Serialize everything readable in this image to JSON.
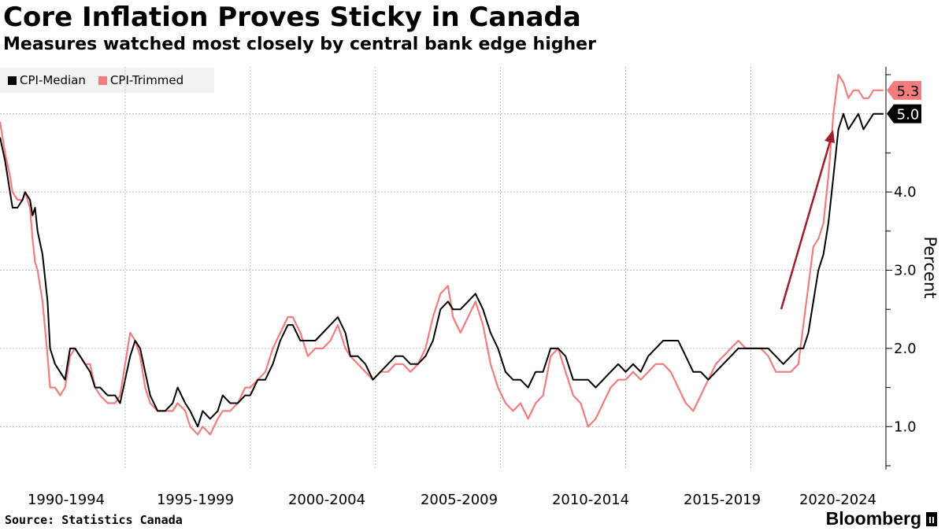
{
  "chart_data": {
    "type": "line",
    "title": "Core Inflation Proves Sticky in Canada",
    "subtitle": "Measures watched most closely by central bank edge higher",
    "ylabel": "Percent",
    "xlabel": "",
    "ylim": [
      0.45,
      5.6
    ],
    "xlim": [
      1989.0,
      2024.4
    ],
    "yticks": [
      1.0,
      2.0,
      3.0,
      4.0
    ],
    "ytick_labels": [
      "1.0",
      "2.0",
      "3.0",
      "4.0"
    ],
    "x_periods": [
      "1990-1994",
      "1995-1999",
      "2000-2004",
      "2005-2009",
      "2010-2014",
      "2015-2019",
      "2020-2024"
    ],
    "x_period_breaks": [
      1994.0,
      1999.0,
      2004.0,
      2009.0,
      2014.0,
      2019.0
    ],
    "grid": true,
    "legend_position": "top-left",
    "annotation": "upward arrow highlighting 2021-2022 surge",
    "series": [
      {
        "name": "CPI-Median",
        "color": "#000000",
        "last_value_label": "5.0",
        "x": [
          1989.0,
          1989.2,
          1989.4,
          1989.5,
          1989.7,
          1989.9,
          1990.0,
          1990.2,
          1990.3,
          1990.4,
          1990.5,
          1990.7,
          1990.9,
          1991.0,
          1991.2,
          1991.4,
          1991.6,
          1991.8,
          1992.0,
          1992.2,
          1992.4,
          1992.6,
          1992.8,
          1993.0,
          1993.3,
          1993.6,
          1993.8,
          1994.0,
          1994.2,
          1994.4,
          1994.6,
          1994.8,
          1995.0,
          1995.3,
          1995.6,
          1995.9,
          1996.1,
          1996.4,
          1996.6,
          1996.9,
          1997.1,
          1997.4,
          1997.7,
          1997.9,
          1998.2,
          1998.5,
          1998.8,
          1999.0,
          1999.3,
          1999.6,
          1999.9,
          2000.2,
          2000.5,
          2000.7,
          2001.0,
          2001.3,
          2001.6,
          2001.9,
          2002.2,
          2002.5,
          2002.8,
          2003.0,
          2003.3,
          2003.6,
          2003.9,
          2004.2,
          2004.5,
          2004.8,
          2005.1,
          2005.4,
          2005.7,
          2006.0,
          2006.3,
          2006.6,
          2006.9,
          2007.1,
          2007.4,
          2007.7,
          2008.0,
          2008.3,
          2008.6,
          2008.9,
          2009.2,
          2009.5,
          2009.8,
          2010.1,
          2010.4,
          2010.7,
          2011.0,
          2011.3,
          2011.6,
          2011.9,
          2012.2,
          2012.5,
          2012.8,
          2013.1,
          2013.4,
          2013.7,
          2014.0,
          2014.3,
          2014.6,
          2014.9,
          2015.2,
          2015.5,
          2015.8,
          2016.1,
          2016.4,
          2016.7,
          2017.0,
          2017.3,
          2017.6,
          2017.9,
          2018.2,
          2018.5,
          2018.8,
          2019.1,
          2019.4,
          2019.7,
          2020.0,
          2020.3,
          2020.6,
          2020.9,
          2021.1,
          2021.3,
          2021.5,
          2021.7,
          2021.9,
          2022.1,
          2022.3,
          2022.5,
          2022.7,
          2022.9,
          2023.1,
          2023.3,
          2023.5,
          2023.7,
          2023.9,
          2024.1,
          2024.3
        ],
        "values": [
          4.7,
          4.4,
          4.0,
          3.8,
          3.8,
          3.9,
          4.0,
          3.9,
          3.7,
          3.8,
          3.5,
          3.2,
          2.6,
          2.0,
          1.8,
          1.7,
          1.6,
          2.0,
          2.0,
          1.9,
          1.8,
          1.7,
          1.5,
          1.5,
          1.4,
          1.4,
          1.3,
          1.6,
          1.9,
          2.1,
          2.0,
          1.7,
          1.4,
          1.2,
          1.2,
          1.3,
          1.5,
          1.3,
          1.2,
          1.0,
          1.2,
          1.1,
          1.2,
          1.4,
          1.3,
          1.3,
          1.4,
          1.4,
          1.6,
          1.6,
          1.8,
          2.1,
          2.3,
          2.3,
          2.1,
          2.1,
          2.1,
          2.2,
          2.3,
          2.4,
          2.2,
          1.9,
          1.9,
          1.8,
          1.6,
          1.7,
          1.8,
          1.9,
          1.9,
          1.8,
          1.8,
          1.9,
          2.1,
          2.5,
          2.6,
          2.5,
          2.5,
          2.6,
          2.7,
          2.5,
          2.2,
          2.0,
          1.7,
          1.6,
          1.6,
          1.5,
          1.7,
          1.7,
          2.0,
          2.0,
          1.9,
          1.6,
          1.6,
          1.6,
          1.5,
          1.6,
          1.7,
          1.8,
          1.7,
          1.8,
          1.7,
          1.9,
          2.0,
          2.1,
          2.1,
          2.1,
          1.9,
          1.7,
          1.7,
          1.6,
          1.7,
          1.8,
          1.9,
          2.0,
          2.0,
          2.0,
          2.0,
          2.0,
          1.9,
          1.8,
          1.9,
          2.0,
          2.0,
          2.2,
          2.6,
          3.0,
          3.2,
          3.6,
          4.2,
          4.8,
          5.0,
          4.8,
          4.9,
          5.0,
          4.8,
          4.9,
          5.0,
          5.0,
          5.0
        ],
        "note": "approximate values read from chart"
      },
      {
        "name": "CPI-Trimmed",
        "color": "#f47c7c",
        "last_value_label": "5.3",
        "x": [
          1989.0,
          1989.2,
          1989.4,
          1989.5,
          1989.7,
          1989.9,
          1990.0,
          1990.2,
          1990.3,
          1990.4,
          1990.5,
          1990.7,
          1990.9,
          1991.0,
          1991.2,
          1991.4,
          1991.6,
          1991.8,
          1992.0,
          1992.2,
          1992.4,
          1992.6,
          1992.8,
          1993.0,
          1993.3,
          1993.6,
          1993.8,
          1994.0,
          1994.2,
          1994.4,
          1994.6,
          1994.8,
          1995.0,
          1995.3,
          1995.6,
          1995.9,
          1996.1,
          1996.4,
          1996.6,
          1996.9,
          1997.1,
          1997.4,
          1997.7,
          1997.9,
          1998.2,
          1998.5,
          1998.8,
          1999.0,
          1999.3,
          1999.6,
          1999.9,
          2000.2,
          2000.5,
          2000.7,
          2001.0,
          2001.3,
          2001.6,
          2001.9,
          2002.2,
          2002.5,
          2002.8,
          2003.0,
          2003.3,
          2003.6,
          2003.9,
          2004.2,
          2004.5,
          2004.8,
          2005.1,
          2005.4,
          2005.7,
          2006.0,
          2006.3,
          2006.6,
          2006.9,
          2007.1,
          2007.4,
          2007.7,
          2008.0,
          2008.3,
          2008.6,
          2008.9,
          2009.2,
          2009.5,
          2009.8,
          2010.1,
          2010.4,
          2010.7,
          2011.0,
          2011.3,
          2011.6,
          2011.9,
          2012.2,
          2012.5,
          2012.8,
          2013.1,
          2013.4,
          2013.7,
          2014.0,
          2014.3,
          2014.6,
          2014.9,
          2015.2,
          2015.5,
          2015.8,
          2016.1,
          2016.4,
          2016.7,
          2017.0,
          2017.3,
          2017.6,
          2017.9,
          2018.2,
          2018.5,
          2018.8,
          2019.1,
          2019.4,
          2019.7,
          2020.0,
          2020.3,
          2020.6,
          2020.9,
          2021.1,
          2021.3,
          2021.5,
          2021.7,
          2021.9,
          2022.1,
          2022.3,
          2022.5,
          2022.7,
          2022.9,
          2023.1,
          2023.3,
          2023.5,
          2023.7,
          2023.9,
          2024.1,
          2024.3
        ],
        "values": [
          4.9,
          4.5,
          4.2,
          4.0,
          3.9,
          3.9,
          4.0,
          3.8,
          3.4,
          3.1,
          3.0,
          2.6,
          1.9,
          1.5,
          1.5,
          1.4,
          1.5,
          1.9,
          2.0,
          1.9,
          1.8,
          1.8,
          1.5,
          1.4,
          1.3,
          1.3,
          1.4,
          1.8,
          2.2,
          2.1,
          1.9,
          1.5,
          1.3,
          1.2,
          1.2,
          1.2,
          1.3,
          1.2,
          1.0,
          0.9,
          1.0,
          0.9,
          1.1,
          1.2,
          1.2,
          1.3,
          1.5,
          1.5,
          1.6,
          1.7,
          2.0,
          2.2,
          2.4,
          2.4,
          2.2,
          1.9,
          2.0,
          2.0,
          2.1,
          2.3,
          2.0,
          1.9,
          1.8,
          1.7,
          1.6,
          1.7,
          1.7,
          1.8,
          1.8,
          1.7,
          1.8,
          2.0,
          2.4,
          2.7,
          2.8,
          2.4,
          2.2,
          2.4,
          2.6,
          2.3,
          1.8,
          1.5,
          1.3,
          1.2,
          1.3,
          1.1,
          1.3,
          1.4,
          1.9,
          2.0,
          1.7,
          1.4,
          1.3,
          1.0,
          1.1,
          1.3,
          1.5,
          1.6,
          1.6,
          1.7,
          1.6,
          1.7,
          1.8,
          1.8,
          1.7,
          1.5,
          1.3,
          1.2,
          1.4,
          1.6,
          1.8,
          1.9,
          2.0,
          2.1,
          2.0,
          2.0,
          2.0,
          1.9,
          1.7,
          1.7,
          1.7,
          1.8,
          2.3,
          2.8,
          3.3,
          3.4,
          3.6,
          4.2,
          5.0,
          5.5,
          5.4,
          5.2,
          5.3,
          5.3,
          5.2,
          5.2,
          5.3,
          5.3,
          5.3
        ],
        "note": "approximate values read from chart"
      }
    ]
  },
  "legend": {
    "items": [
      {
        "label": "CPI-Median",
        "color": "#000000"
      },
      {
        "label": "CPI-Trimmed",
        "color": "#f47c7c"
      }
    ]
  },
  "footer": {
    "source": "Source: Statistics Canada",
    "brand": "Bloomberg"
  },
  "colors": {
    "grid": "#bdbdbd",
    "arrow": "#a01c2c",
    "median": "#000000",
    "trimmed": "#f47c7c"
  }
}
